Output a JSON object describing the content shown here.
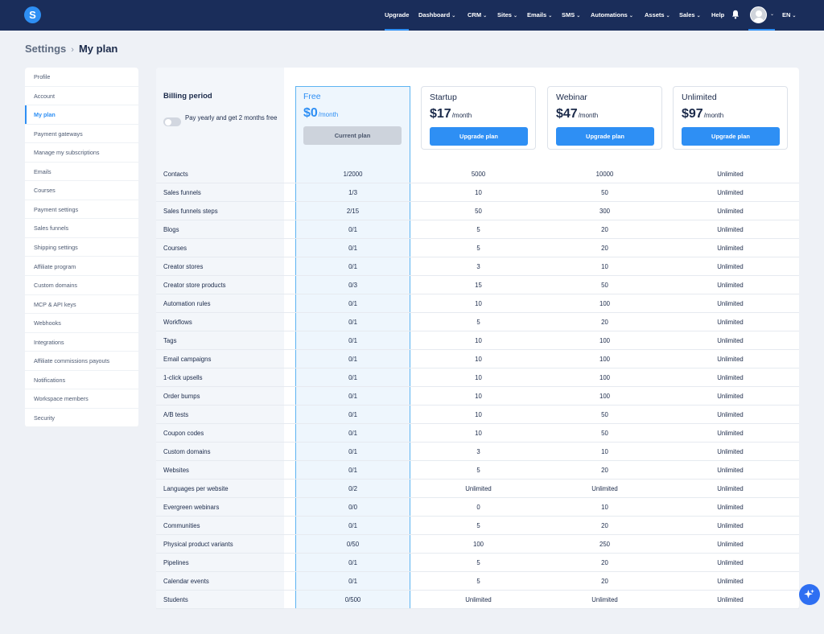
{
  "nav": {
    "logo": "S",
    "items": [
      {
        "label": "Upgrade",
        "chevron": false,
        "active": true
      },
      {
        "label": "Dashboard",
        "chevron": true
      },
      {
        "label": "CRM",
        "chevron": true
      },
      {
        "label": "Sites",
        "chevron": true
      },
      {
        "label": "Emails",
        "chevron": true
      },
      {
        "label": "SMS",
        "chevron": true
      },
      {
        "label": "Automations",
        "chevron": true
      },
      {
        "label": "Assets",
        "chevron": true
      },
      {
        "label": "Sales",
        "chevron": true
      },
      {
        "label": "Help",
        "chevron": false
      }
    ],
    "language": "EN",
    "icons": [
      "bell-icon",
      "avatar",
      "chevron-down-icon"
    ]
  },
  "breadcrumb": {
    "parent": "Settings",
    "separator": "›",
    "current": "My plan"
  },
  "sidebar": {
    "items": [
      "Profile",
      "Account",
      "My plan",
      "Payment gateways",
      "Manage my subscriptions",
      "Emails",
      "Courses",
      "Payment settings",
      "Sales funnels",
      "Shipping settings",
      "Affiliate program",
      "Custom domains",
      "MCP & API keys",
      "Webhooks",
      "Integrations",
      "Affiliate commissions payouts",
      "Notifications",
      "Workspace members",
      "Security"
    ],
    "active": "My plan"
  },
  "billing": {
    "title": "Billing period",
    "toggle_label": "Pay yearly and get 2 months free",
    "toggle_on": false
  },
  "plans": [
    {
      "name": "Free",
      "price": "$0",
      "period": "/month",
      "button": "Current plan",
      "current": true
    },
    {
      "name": "Startup",
      "price": "$17",
      "period": "/month",
      "button": "Upgrade plan"
    },
    {
      "name": "Webinar",
      "price": "$47",
      "period": "/month",
      "button": "Upgrade plan"
    },
    {
      "name": "Unlimited",
      "price": "$97",
      "period": "/month",
      "button": "Upgrade plan"
    }
  ],
  "features": [
    {
      "label": "Contacts",
      "values": [
        "1/2000",
        "5000",
        "10000",
        "Unlimited"
      ]
    },
    {
      "label": "Sales funnels",
      "values": [
        "1/3",
        "10",
        "50",
        "Unlimited"
      ]
    },
    {
      "label": "Sales funnels steps",
      "values": [
        "2/15",
        "50",
        "300",
        "Unlimited"
      ]
    },
    {
      "label": "Blogs",
      "values": [
        "0/1",
        "5",
        "20",
        "Unlimited"
      ]
    },
    {
      "label": "Courses",
      "values": [
        "0/1",
        "5",
        "20",
        "Unlimited"
      ]
    },
    {
      "label": "Creator stores",
      "values": [
        "0/1",
        "3",
        "10",
        "Unlimited"
      ]
    },
    {
      "label": "Creator store products",
      "values": [
        "0/3",
        "15",
        "50",
        "Unlimited"
      ]
    },
    {
      "label": "Automation rules",
      "values": [
        "0/1",
        "10",
        "100",
        "Unlimited"
      ]
    },
    {
      "label": "Workflows",
      "values": [
        "0/1",
        "5",
        "20",
        "Unlimited"
      ]
    },
    {
      "label": "Tags",
      "values": [
        "0/1",
        "10",
        "100",
        "Unlimited"
      ]
    },
    {
      "label": "Email campaigns",
      "values": [
        "0/1",
        "10",
        "100",
        "Unlimited"
      ]
    },
    {
      "label": "1-click upsells",
      "values": [
        "0/1",
        "10",
        "100",
        "Unlimited"
      ]
    },
    {
      "label": "Order bumps",
      "values": [
        "0/1",
        "10",
        "100",
        "Unlimited"
      ]
    },
    {
      "label": "A/B tests",
      "values": [
        "0/1",
        "10",
        "50",
        "Unlimited"
      ]
    },
    {
      "label": "Coupon codes",
      "values": [
        "0/1",
        "10",
        "50",
        "Unlimited"
      ]
    },
    {
      "label": "Custom domains",
      "values": [
        "0/1",
        "3",
        "10",
        "Unlimited"
      ]
    },
    {
      "label": "Websites",
      "values": [
        "0/1",
        "5",
        "20",
        "Unlimited"
      ]
    },
    {
      "label": "Languages per website",
      "values": [
        "0/2",
        "Unlimited",
        "Unlimited",
        "Unlimited"
      ]
    },
    {
      "label": "Evergreen webinars",
      "values": [
        "0/0",
        "0",
        "10",
        "Unlimited"
      ]
    },
    {
      "label": "Communities",
      "values": [
        "0/1",
        "5",
        "20",
        "Unlimited"
      ]
    },
    {
      "label": "Physical product variants",
      "values": [
        "0/50",
        "100",
        "250",
        "Unlimited"
      ]
    },
    {
      "label": "Pipelines",
      "values": [
        "0/1",
        "5",
        "20",
        "Unlimited"
      ]
    },
    {
      "label": "Calendar events",
      "values": [
        "0/1",
        "5",
        "20",
        "Unlimited"
      ]
    },
    {
      "label": "Students",
      "values": [
        "0/500",
        "Unlimited",
        "Unlimited",
        "Unlimited"
      ]
    }
  ],
  "colors": {
    "nav_bg": "#1a2d5a",
    "accent": "#2e8ff4",
    "page_bg": "#eef1f6",
    "free_col_bg": "#eef6fd"
  },
  "fab": {
    "icon": "sparkle-icon"
  }
}
